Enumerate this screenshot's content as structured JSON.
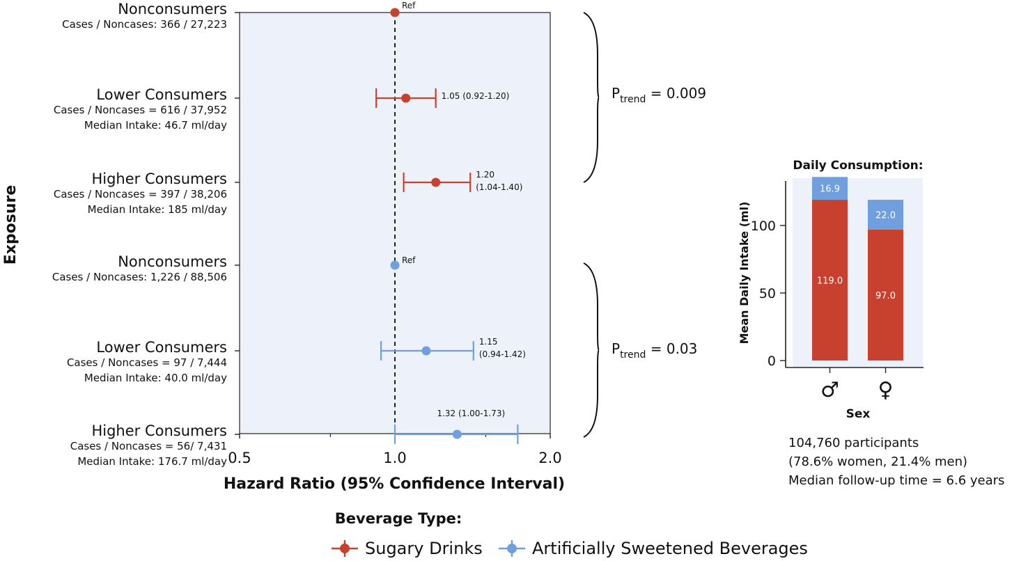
{
  "chart_data": [
    {
      "type": "forest",
      "xlabel": "Hazard Ratio (95% Confidence Interval)",
      "ylabel": "Exposure",
      "xscale": "log",
      "xlim": [
        0.5,
        2.0
      ],
      "xticks": [
        "0.5",
        "1.0",
        "2.0"
      ],
      "reference_line": 1.0,
      "legend": {
        "title": "Beverage Type:",
        "placement": "bottom",
        "entries": [
          {
            "name": "Sugary Drinks",
            "color": "#c8402e"
          },
          {
            "name": "Artificially Sweetened Beverages",
            "color": "#6f9fdc"
          }
        ]
      },
      "groups": [
        {
          "series": "Sugary Drinks",
          "color": "#c8402e",
          "p_trend": {
            "prefix": "P",
            "subscript": "trend",
            "value": " = 0.009"
          },
          "rows": [
            {
              "label": "Nonconsumers",
              "details": [
                "Cases / Noncases: 366 / 27,223"
              ],
              "hr": 1.0,
              "lo": null,
              "hi": null,
              "annotation": [
                "Ref"
              ]
            },
            {
              "label": "Lower Consumers",
              "details": [
                "Cases / Noncases = 616 / 37,952",
                "Median Intake: 46.7 ml/day"
              ],
              "hr": 1.05,
              "lo": 0.92,
              "hi": 1.2,
              "annotation": [
                "1.05 (0.92-1.20)"
              ]
            },
            {
              "label": "Higher Consumers",
              "details": [
                "Cases / Noncases = 397 / 38,206",
                "Median Intake: 185 ml/day"
              ],
              "hr": 1.2,
              "lo": 1.04,
              "hi": 1.4,
              "annotation": [
                "1.20",
                "(1.04-1.40)"
              ]
            }
          ]
        },
        {
          "series": "Artificially Sweetened Beverages",
          "color": "#6f9fdc",
          "p_trend": {
            "prefix": "P",
            "subscript": "trend",
            "value": " = 0.03"
          },
          "rows": [
            {
              "label": "Nonconsumers",
              "details": [
                "Cases / Noncases: 1,226 / 88,506"
              ],
              "hr": 1.0,
              "lo": null,
              "hi": null,
              "annotation": [
                "Ref"
              ]
            },
            {
              "label": "Lower Consumers",
              "details": [
                "Cases / Noncases = 97 / 7,444",
                "Median Intake: 40.0 ml/day"
              ],
              "hr": 1.15,
              "lo": 0.94,
              "hi": 1.42,
              "annotation": [
                "1.15",
                "(0.94-1.42)"
              ]
            },
            {
              "label": "Higher Consumers",
              "details": [
                "Cases / Noncases = 56/ 7,431",
                "Median Intake: 176.7 ml/day"
              ],
              "hr": 1.32,
              "lo": 1.0,
              "hi": 1.73,
              "annotation": [
                "1.32 (1.00-1.73)"
              ]
            }
          ]
        }
      ]
    },
    {
      "type": "bar",
      "stacked": true,
      "title": "Daily Consumption:",
      "xlabel": "Sex",
      "ylabel": "Mean Daily Intake (ml)",
      "ylim": [
        0,
        135
      ],
      "yticks": [
        0,
        50,
        100
      ],
      "categories": [
        "♂",
        "♀"
      ],
      "series": [
        {
          "name": "Sugary Drinks",
          "color": "#c8402e",
          "values": [
            119.0,
            97.0
          ],
          "labels": [
            "119.0",
            "97.0"
          ]
        },
        {
          "name": "Artificially Sweetened Beverages",
          "color": "#6f9fdc",
          "values": [
            16.9,
            22.0
          ],
          "labels": [
            "16.9",
            "22.0"
          ]
        }
      ]
    }
  ],
  "study_info": [
    "104,760 participants",
    "(78.6% women, 21.4% men)",
    "Median follow-up time = 6.6 years"
  ]
}
